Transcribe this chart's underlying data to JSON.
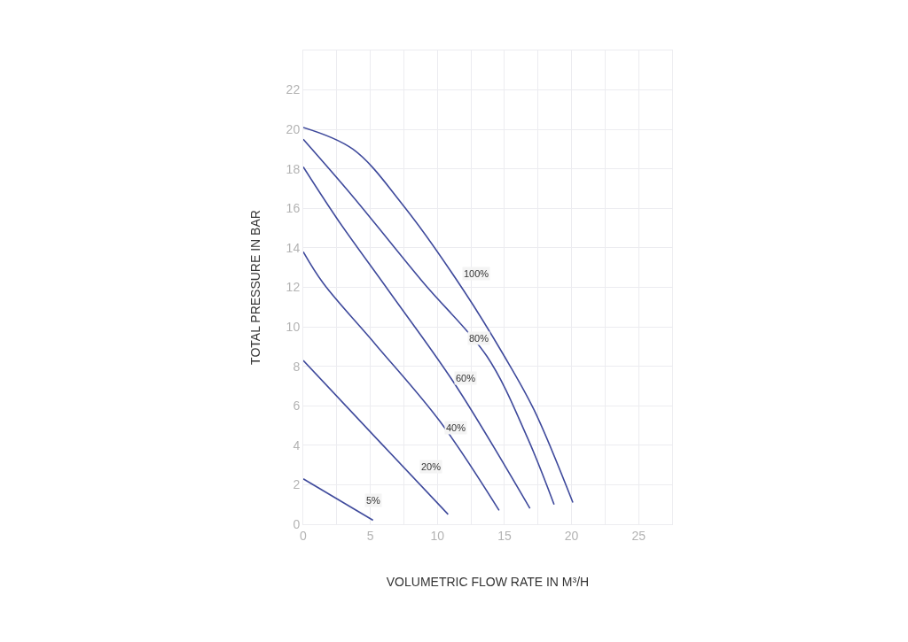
{
  "chart_data": {
    "type": "line",
    "xlabel": "VOLUMETRIC FLOW RATE IN M³/H",
    "ylabel": "TOTAL PRESSURE IN BAR",
    "xlim": [
      0,
      27.5
    ],
    "ylim": [
      0,
      24
    ],
    "xticks": [
      0,
      {
        "value": 2.5,
        "label": null
      },
      5,
      {
        "value": 7.5,
        "label": null
      },
      10,
      {
        "value": 12.5,
        "label": null
      },
      15,
      {
        "value": 17.5,
        "label": null
      },
      20,
      {
        "value": 22.5,
        "label": null
      },
      25
    ],
    "yticks": [
      0,
      2,
      4,
      6,
      8,
      10,
      12,
      14,
      16,
      18,
      20,
      22
    ],
    "grid": true,
    "marker": "none",
    "line_style": "solid",
    "series": [
      {
        "color": "#3f4a9c",
        "x": [
          0,
          5.2
        ],
        "values": [
          2.3,
          0.2
        ]
      },
      {
        "color": "#3f4a9c",
        "x": [
          0,
          5.8,
          10.8
        ],
        "values": [
          8.3,
          4.1,
          0.5
        ]
      },
      {
        "color": "#3f4a9c",
        "x": [
          0,
          1.5,
          5.4,
          10.2,
          14.6
        ],
        "values": [
          13.8,
          12.2,
          9.1,
          5.2,
          0.7
        ]
      },
      {
        "color": "#3f4a9c",
        "x": [
          0,
          2.6,
          6.4,
          11.3,
          16.9
        ],
        "values": [
          18.1,
          15.4,
          11.8,
          7.1,
          0.8
        ]
      },
      {
        "color": "#3f4a9c",
        "x": [
          0,
          3.7,
          9.0,
          13.7,
          16.7,
          18.7
        ],
        "values": [
          19.5,
          16.6,
          12.2,
          8.5,
          4.4,
          1.0
        ]
      },
      {
        "color": "#3f4a9c",
        "x": [
          0,
          3.7,
          7.4,
          12.0,
          15.0,
          17.2,
          20.1
        ],
        "values": [
          20.1,
          19.0,
          16.2,
          11.8,
          8.5,
          5.8,
          1.1
        ]
      }
    ],
    "annotations": [
      {
        "text": "100%",
        "x": 12.9,
        "y": 12.7
      },
      {
        "text": "80%",
        "x": 13.1,
        "y": 9.4
      },
      {
        "text": "60%",
        "x": 12.1,
        "y": 7.4
      },
      {
        "text": "40%",
        "x": 11.4,
        "y": 4.9
      },
      {
        "text": "20%",
        "x": 9.5,
        "y": 2.9
      },
      {
        "text": "5%",
        "x": 5.2,
        "y": 1.2
      }
    ]
  }
}
